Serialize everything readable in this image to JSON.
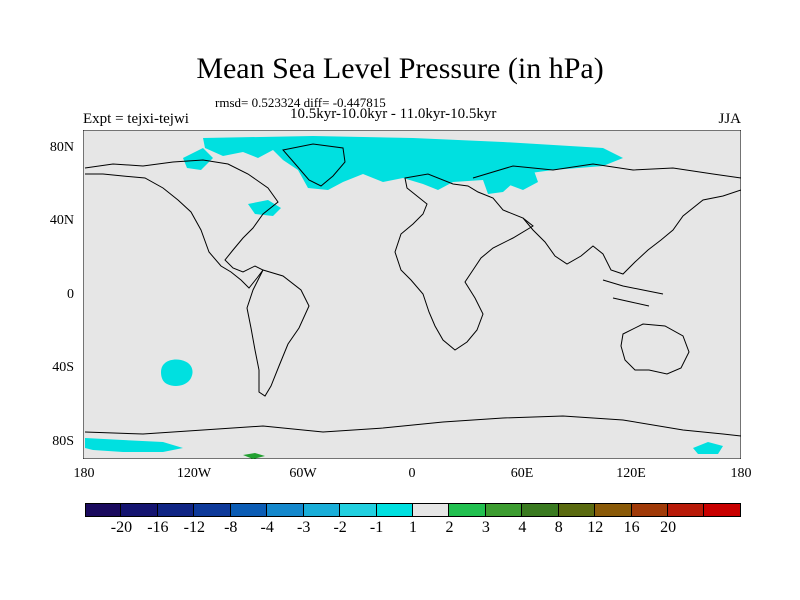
{
  "title": "Mean Sea Level Pressure (in hPa)",
  "stats": "rmsd= 0.523324 diff= -0.447815",
  "period": "10.5kyr-10.0kyr - 11.0kyr-10.5kyr",
  "experiment": "Expt = tejxi-tejwi",
  "season": "JJA",
  "lat_labels": [
    "80N",
    "40N",
    "0",
    "40S",
    "80S"
  ],
  "lon_labels": [
    "180",
    "120W",
    "60W",
    "0",
    "60E",
    "120E",
    "180"
  ],
  "colorbar": {
    "colors": [
      "#1a0a5e",
      "#141470",
      "#102584",
      "#0e3a9a",
      "#0b5cb4",
      "#1488cc",
      "#1aaed8",
      "#22d0e0",
      "#00e0e0",
      "#e6e6e6",
      "#22c050",
      "#3c9c30",
      "#3a7a20",
      "#5a6a10",
      "#8a5a08",
      "#a03a08",
      "#b81a08",
      "#c80000"
    ],
    "labels": [
      "-20",
      "-16",
      "-12",
      "-8",
      "-4",
      "-3",
      "-2",
      "-1",
      "1",
      "2",
      "3",
      "4",
      "8",
      "12",
      "16",
      "20"
    ]
  },
  "colors": {
    "ocean": "#e6e6e6",
    "negative_anomaly": "#00e0e0",
    "positive_anomaly": "#22a030"
  }
}
